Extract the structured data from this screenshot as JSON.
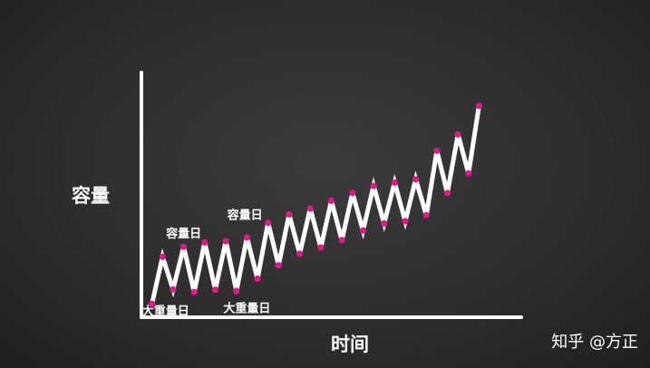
{
  "chart_data": {
    "type": "line",
    "title": "",
    "xlabel": "时间",
    "ylabel": "容量",
    "grid": false,
    "legend": "none",
    "x": [
      1,
      2,
      3,
      4,
      5,
      6,
      7,
      8,
      9,
      10,
      11,
      12,
      13,
      14,
      15,
      16,
      17,
      18,
      19,
      20,
      21,
      22,
      23,
      24,
      25,
      26,
      27,
      28,
      29,
      30,
      31,
      32
    ],
    "series": [
      {
        "values": [
          3.6,
          16.3,
          7.5,
          19.0,
          6.8,
          20.2,
          7.4,
          20.5,
          7.1,
          21.5,
          10.4,
          25.5,
          14.0,
          27.7,
          17.1,
          29.3,
          18.8,
          31.4,
          20.8,
          33.5,
          23.4,
          35.4,
          25.3,
          36.3,
          25.9,
          37.2,
          27.5,
          44.9,
          33.5,
          49.3,
          38.8,
          57.0
        ],
        "color": "#ffffff",
        "marker_color": "#e0188a"
      }
    ],
    "xlim": [
      0,
      36
    ],
    "ylim": [
      0,
      66
    ],
    "annotations": [
      {
        "text": "容量日",
        "x": 4,
        "y": 21.5
      },
      {
        "text": "容量日",
        "x": 9.8,
        "y": 26.5
      },
      {
        "text": "大重量日",
        "x": 2.3,
        "y": 0.6
      },
      {
        "text": "大重量日",
        "x": 10,
        "y": 1.3
      }
    ]
  },
  "watermark": "知乎 @方正"
}
